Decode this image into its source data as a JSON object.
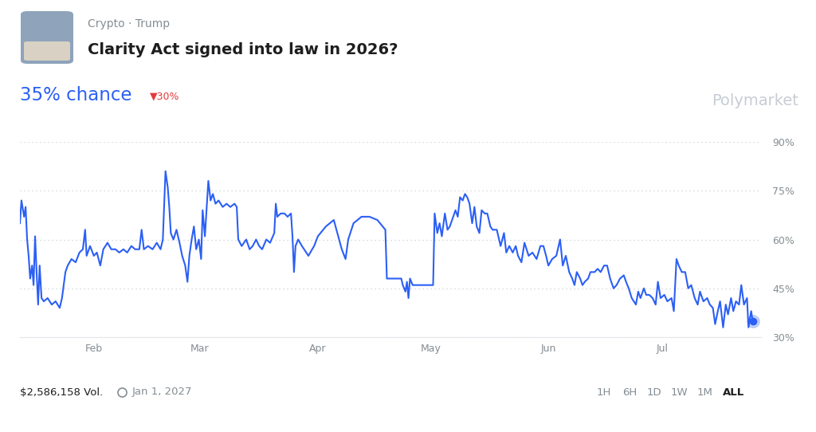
{
  "chart_data": {
    "type": "line",
    "subtitle": "Crypto · Trump",
    "title": "Clarity Act signed into law in 2026?",
    "annotations": {
      "chance": "35% chance",
      "change": "▼30%",
      "brand": "Polymarket",
      "volume": "$2,586,158 Vol.",
      "end_date": "Jan 1, 2027",
      "range_buttons": [
        "1H",
        "6H",
        "1D",
        "1W",
        "1M",
        "ALL"
      ],
      "selected_range": "ALL"
    },
    "color": "#2b5ff5",
    "grid": true,
    "xlim": [
      11.5,
      207
    ],
    "xticks": [
      {
        "value": 31,
        "label": "Feb"
      },
      {
        "value": 59,
        "label": "Mar"
      },
      {
        "value": 90,
        "label": "Apr"
      },
      {
        "value": 120,
        "label": "May"
      },
      {
        "value": 151,
        "label": "Jun"
      },
      {
        "value": 181,
        "label": "Jul"
      }
    ],
    "ylim": [
      30,
      90
    ],
    "yticks": [
      {
        "value": 30,
        "label": "30%"
      },
      {
        "value": 45,
        "label": "45%"
      },
      {
        "value": 60,
        "label": "60%"
      },
      {
        "value": 75,
        "label": "75%"
      },
      {
        "value": 90,
        "label": "90%"
      }
    ],
    "x": [
      11.5,
      11.9,
      12.6,
      13.0,
      13.4,
      13.8,
      14.2,
      14.7,
      15.1,
      15.5,
      15.9,
      16.3,
      16.7,
      17.2,
      17.8,
      18.8,
      19.9,
      20.9,
      22.0,
      22.6,
      23.5,
      24.1,
      25.1,
      26.2,
      27.2,
      28.1,
      28.7,
      29.1,
      30.0,
      31.0,
      31.8,
      32.7,
      33.5,
      34.6,
      35.6,
      36.7,
      37.7,
      38.8,
      39.8,
      40.9,
      41.9,
      43.0,
      43.6,
      44.2,
      45.3,
      46.5,
      47.6,
      48.6,
      49.2,
      49.9,
      50.5,
      50.9,
      51.3,
      52.0,
      52.8,
      53.6,
      54.3,
      55.1,
      55.7,
      56.2,
      56.8,
      57.4,
      58.0,
      58.7,
      59.3,
      59.7,
      60.3,
      61.2,
      61.8,
      62.4,
      63.1,
      63.9,
      65.0,
      66.0,
      67.0,
      68.1,
      68.7,
      69.1,
      70.0,
      71.2,
      72.1,
      72.9,
      73.8,
      74.6,
      75.4,
      76.5,
      77.5,
      78.6,
      79.0,
      79.4,
      80.3,
      81.3,
      82.1,
      83.0,
      83.4,
      83.8,
      84.2,
      84.9,
      85.9,
      87.6,
      89.1,
      90.1,
      92.2,
      94.3,
      96.4,
      97.4,
      98.1,
      99.5,
      101.6,
      103.7,
      105.8,
      107.9,
      108.3,
      109.0,
      110.0,
      111.1,
      112.1,
      112.5,
      113.2,
      113.6,
      114.0,
      114.4,
      115.1,
      115.7,
      116.9,
      119.5,
      120.5,
      120.9,
      121.6,
      122.2,
      122.8,
      123.6,
      124.3,
      124.9,
      125.5,
      126.4,
      127.0,
      127.6,
      128.3,
      128.9,
      129.5,
      130.1,
      130.8,
      131.4,
      132.0,
      132.7,
      133.3,
      134.1,
      134.8,
      135.6,
      136.2,
      137.3,
      138.3,
      139.2,
      139.8,
      140.6,
      141.5,
      142.3,
      142.9,
      143.8,
      144.6,
      145.7,
      146.7,
      147.8,
      148.8,
      149.6,
      150.3,
      150.9,
      151.9,
      153.0,
      153.6,
      154.0,
      154.7,
      155.5,
      156.4,
      157.2,
      157.8,
      158.4,
      159.3,
      159.9,
      160.5,
      161.4,
      162.0,
      163.1,
      163.9,
      164.7,
      165.6,
      166.4,
      167.2,
      168.1,
      168.9,
      169.8,
      170.8,
      171.4,
      172.1,
      172.9,
      174.0,
      174.6,
      175.2,
      176.1,
      176.7,
      177.5,
      178.4,
      179.2,
      179.8,
      180.5,
      181.5,
      182.3,
      183.4,
      184.0,
      184.7,
      185.3,
      186.1,
      187.0,
      187.8,
      188.6,
      189.5,
      190.3,
      190.9,
      191.8,
      192.8,
      193.5,
      194.3,
      194.9,
      195.6,
      196.2,
      197.0,
      197.7,
      198.3,
      199.1,
      199.7,
      200.4,
      201.2,
      201.8,
      202.5,
      203.3,
      203.7,
      204.4,
      204.8
    ],
    "values": [
      65,
      72,
      67,
      70,
      60,
      55,
      48,
      52,
      46,
      61,
      50,
      40,
      52,
      42,
      41,
      42,
      40,
      41,
      39,
      42,
      50,
      52,
      54,
      53,
      56,
      57,
      63,
      55,
      58,
      55,
      56,
      52,
      57,
      59,
      57,
      57,
      56,
      57,
      56,
      58,
      57,
      57,
      63,
      57,
      58,
      57,
      59,
      57,
      60,
      81,
      76,
      70,
      62,
      60,
      63,
      59,
      55,
      52,
      47,
      55,
      60,
      64,
      57,
      60,
      54,
      69,
      61,
      78,
      72,
      74,
      71,
      72,
      70,
      71,
      70,
      71,
      70,
      60,
      58,
      60,
      57,
      58,
      60,
      58,
      57,
      60,
      59,
      62,
      71,
      67,
      68,
      68,
      67,
      68,
      61,
      50,
      58,
      60,
      58,
      55,
      58,
      61,
      64,
      66,
      57,
      54,
      60,
      65,
      67,
      67,
      66,
      63,
      48,
      48,
      48,
      48,
      48,
      46,
      44,
      47,
      42,
      48,
      46,
      46,
      46,
      46,
      46,
      68,
      62,
      65,
      61,
      68,
      63,
      64,
      66,
      69,
      67,
      73,
      72,
      74,
      73,
      71,
      65,
      70,
      64,
      62,
      69,
      68,
      68,
      64,
      63,
      63,
      58,
      62,
      56,
      58,
      56,
      58,
      55,
      53,
      59,
      55,
      56,
      54,
      58,
      58,
      55,
      52,
      54,
      55,
      58,
      60,
      52,
      55,
      50,
      48,
      46,
      50,
      48,
      46,
      47,
      48,
      50,
      50,
      51,
      50,
      52,
      52,
      48,
      45,
      46,
      48,
      49,
      47,
      45,
      42,
      40,
      44,
      42,
      45,
      43,
      43,
      42,
      40,
      47,
      42,
      43,
      41,
      42,
      38,
      54,
      52,
      50,
      50,
      45,
      46,
      42,
      40,
      44,
      41,
      42,
      40,
      39,
      34,
      38,
      41,
      33,
      40,
      37,
      42,
      38,
      41,
      40,
      46,
      40,
      42,
      33,
      38,
      35
    ]
  }
}
